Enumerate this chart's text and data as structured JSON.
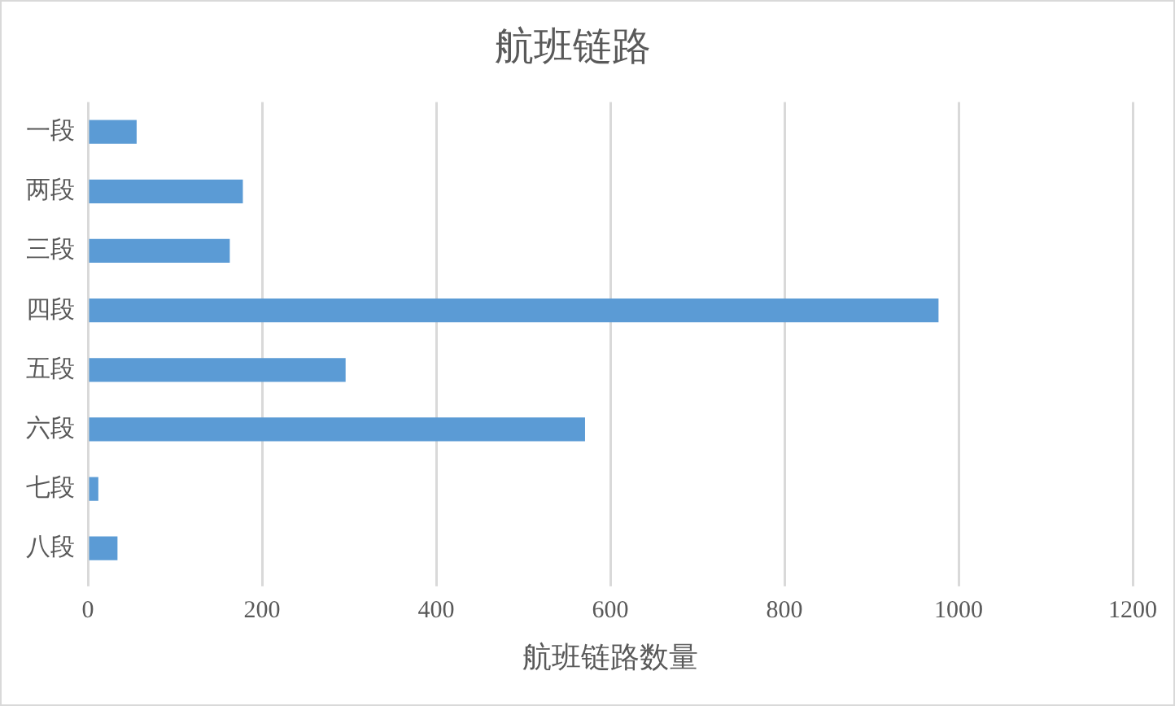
{
  "chart_data": {
    "type": "bar",
    "orientation": "horizontal",
    "title": "航班链路",
    "xlabel": "航班链路数量",
    "categories": [
      "一段",
      "两段",
      "三段",
      "四段",
      "五段",
      "六段",
      "七段",
      "八段"
    ],
    "values": [
      56,
      178,
      163,
      977,
      296,
      571,
      12,
      34
    ],
    "color": "#5b9bd5",
    "xlim": [
      0,
      1200
    ],
    "xticks": [
      0,
      200,
      400,
      600,
      800,
      1000,
      1200
    ],
    "grid": "x"
  }
}
